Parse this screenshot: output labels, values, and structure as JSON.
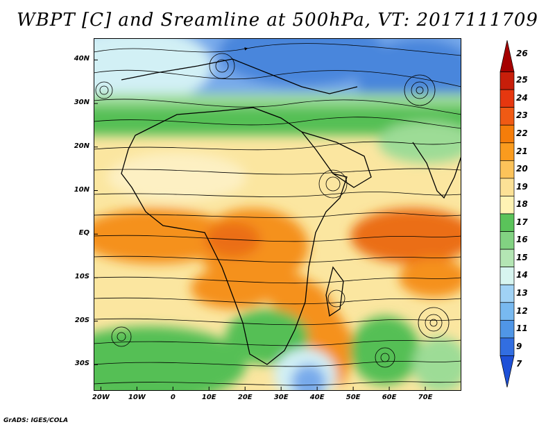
{
  "title": "WBPT [C] and Sreamline at 500hPa, VT: 2017111709",
  "credit": "GrADS: IGES/COLA",
  "lat_labels": [
    "40N",
    "30N",
    "20N",
    "10N",
    "EQ",
    "10S",
    "20S",
    "30S"
  ],
  "lat_values": [
    40,
    30,
    20,
    10,
    0,
    -10,
    -20,
    -30
  ],
  "lon_labels": [
    "20W",
    "10W",
    "0",
    "10E",
    "20E",
    "30E",
    "40E",
    "50E",
    "60E",
    "70E"
  ],
  "lon_values": [
    -20,
    -10,
    0,
    10,
    20,
    30,
    40,
    50,
    60,
    70
  ],
  "extent": {
    "lon_min": -22,
    "lon_max": 80,
    "lat_min": -36,
    "lat_max": 45
  },
  "colorbar": {
    "labels": [
      "26",
      "25",
      "24",
      "23",
      "22",
      "21",
      "20",
      "19",
      "18",
      "17",
      "16",
      "15",
      "14",
      "13",
      "12",
      "11",
      "9",
      "7"
    ],
    "colors": [
      "#a50000",
      "#c81e0a",
      "#e6370f",
      "#f05a14",
      "#f57d0a",
      "#fa9b1e",
      "#fcc35a",
      "#fce196",
      "#fff3b4",
      "#5ac35a",
      "#82d282",
      "#b4e6b4",
      "#d7f5f0",
      "#a0d2f5",
      "#78b9f0",
      "#5096e6",
      "#326ee1",
      "#1e50d7"
    ]
  },
  "colors": {
    "orange": "#f5911e",
    "dark_orange": "#eb6e14",
    "yellow": "#fbe6a0",
    "light_yellow": "#fdf0c3",
    "green": "#55bf55",
    "light_green": "#9ddc96",
    "light_blue": "#d2f0f5",
    "blue": "#78aaeb",
    "dark_blue": "#4a86dc"
  }
}
